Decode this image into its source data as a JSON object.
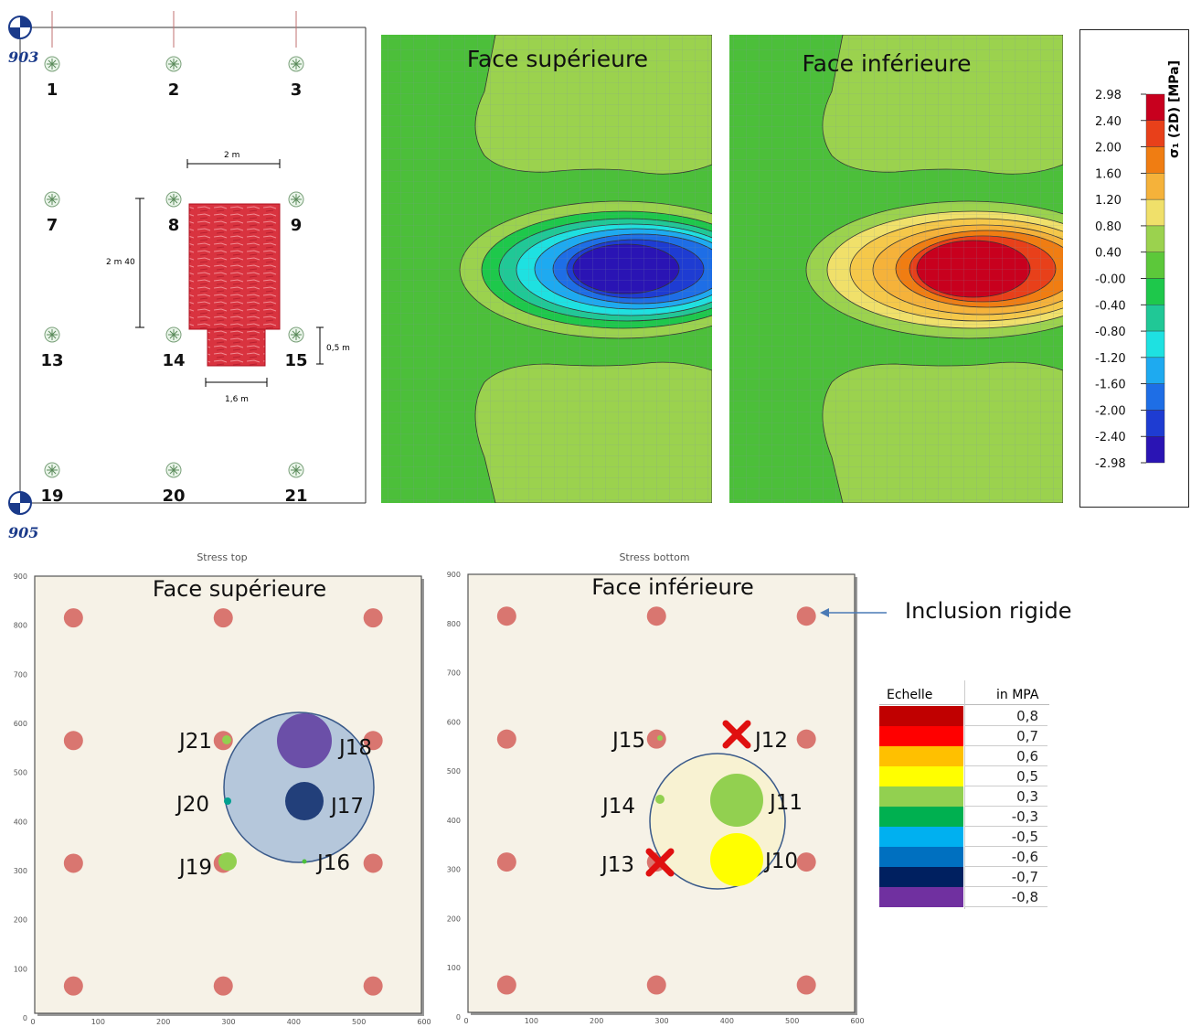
{
  "plan": {
    "marker_top": "903",
    "marker_bottom": "905",
    "piles": [
      "1",
      "2",
      "3",
      "7",
      "8",
      "9",
      "13",
      "14",
      "15",
      "19",
      "20",
      "21"
    ],
    "dim_width": "2 m",
    "dim_height": "2 m 40",
    "dim_small_h": "0,5 m",
    "dim_small_w": "1,6 m"
  },
  "fem": {
    "top_title": "Face supérieure",
    "bottom_title": "Face inférieure",
    "legend_title": "σ₁ (2D) [MPa]",
    "legend_ticks": [
      "2.98",
      "2.40",
      "2.00",
      "1.60",
      "1.20",
      "0.80",
      "0.40",
      "-0.00",
      "-0.40",
      "-0.80",
      "-1.20",
      "-1.60",
      "-2.00",
      "-2.40",
      "-2.98"
    ],
    "legend_colors": [
      "#c8001e",
      "#e8401a",
      "#f07d12",
      "#f5b23a",
      "#f0e06a",
      "#9bd24e",
      "#5cc83a",
      "#1ec84b",
      "#20c896",
      "#1ee1e1",
      "#1eaaf0",
      "#1e6ee6",
      "#1e3cd2",
      "#2a14b4"
    ],
    "colors": {
      "green": "#4cbf3a",
      "light_green": "#9bd24e"
    }
  },
  "charts": [
    {
      "caption": "Stress top",
      "title": "Face supérieure",
      "yticks": [
        "900",
        "800",
        "700",
        "600",
        "500",
        "400",
        "300",
        "200",
        "100",
        "0"
      ],
      "xticks": [
        "0",
        "100",
        "200",
        "300",
        "400",
        "500",
        "600"
      ],
      "labels": [
        "J21",
        "J18",
        "J20",
        "J17",
        "J19",
        "J16"
      ]
    },
    {
      "caption": "Stress bottom",
      "title": "Face inférieure",
      "yticks": [
        "900",
        "800",
        "700",
        "600",
        "500",
        "400",
        "300",
        "200",
        "100",
        "0"
      ],
      "xticks": [
        "0",
        "100",
        "200",
        "300",
        "400",
        "500",
        "600"
      ],
      "labels": [
        "J15",
        "J12",
        "J14",
        "J11",
        "J13",
        "J10"
      ]
    }
  ],
  "callout": "Inclusion rigide",
  "scale": {
    "header_left": "Echelle",
    "header_right": "in MPA",
    "rows": [
      {
        "value": "0,8",
        "color": "#c00000"
      },
      {
        "value": "0,7",
        "color": "#ff0000"
      },
      {
        "value": "0,6",
        "color": "#ffc000"
      },
      {
        "value": "0,5",
        "color": "#ffff00"
      },
      {
        "value": "0,3",
        "color": "#92d050"
      },
      {
        "value": "-0,3",
        "color": "#00b050"
      },
      {
        "value": "-0,5",
        "color": "#00b0f0"
      },
      {
        "value": "-0,6",
        "color": "#0070c0"
      },
      {
        "value": "-0,7",
        "color": "#002060"
      },
      {
        "value": "-0,8",
        "color": "#7030a0"
      }
    ]
  }
}
